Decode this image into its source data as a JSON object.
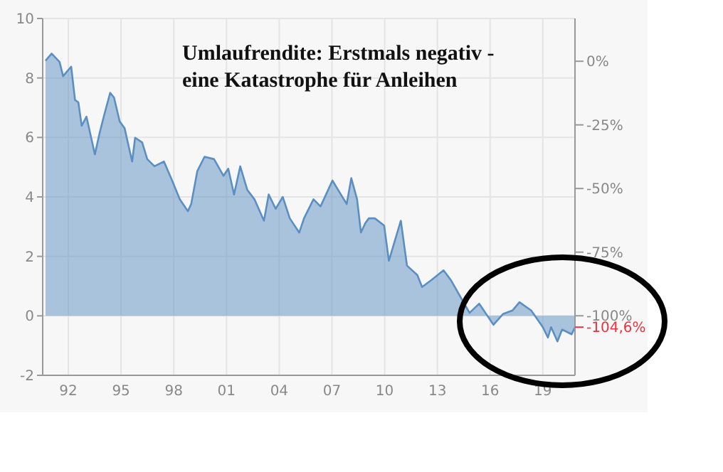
{
  "chart_data": {
    "type": "area",
    "title": "Umlaufrendite: Erstmals negativ -\neine Katastrophe für Anleihen",
    "x": [
      1990.7,
      1991.05,
      1991.5,
      1991.7,
      1992.16,
      1992.38,
      1992.57,
      1992.76,
      1993.03,
      1993.51,
      1993.78,
      1994.05,
      1994.38,
      1994.6,
      1994.92,
      1995.2,
      1995.63,
      1995.8,
      1996.2,
      1996.49,
      1996.9,
      1997.44,
      1997.85,
      1998.34,
      1998.8,
      1998.99,
      1999.34,
      1999.75,
      2000.29,
      2000.83,
      2001.1,
      2001.43,
      2001.78,
      2002.18,
      2002.59,
      2003.13,
      2003.4,
      2003.8,
      2004.2,
      2004.6,
      2005.14,
      2005.41,
      2005.95,
      2006.35,
      2007.03,
      2007.43,
      2007.84,
      2008.1,
      2008.43,
      2008.65,
      2008.9,
      2009.1,
      2009.44,
      2009.97,
      2010.24,
      2010.92,
      2011.27,
      2011.86,
      2012.13,
      2012.67,
      2013.35,
      2013.76,
      2014.83,
      2015.38,
      2016.19,
      2016.73,
      2017.27,
      2017.67,
      2018.34,
      2019.0,
      2019.29,
      2019.47,
      2019.83,
      2020.1,
      2020.64,
      2020.83
    ],
    "series": [
      {
        "color": "#5b8fc4",
        "values": [
          8.58,
          8.82,
          8.54,
          8.06,
          8.38,
          7.26,
          7.18,
          6.39,
          6.7,
          5.43,
          6.15,
          6.78,
          7.5,
          7.34,
          6.54,
          6.31,
          5.19,
          5.99,
          5.83,
          5.27,
          5.03,
          5.19,
          4.63,
          3.92,
          3.52,
          3.76,
          4.87,
          5.35,
          5.27,
          4.71,
          4.95,
          4.08,
          5.03,
          4.24,
          3.92,
          3.2,
          4.08,
          3.6,
          4.0,
          3.28,
          2.8,
          3.28,
          3.92,
          3.68,
          4.55,
          4.16,
          3.76,
          4.63,
          3.92,
          2.8,
          3.12,
          3.28,
          3.28,
          3.04,
          1.85,
          3.2,
          1.69,
          1.37,
          0.97,
          1.21,
          1.53,
          1.21,
          0.1,
          0.41,
          -0.3,
          0.06,
          0.18,
          0.46,
          0.18,
          -0.38,
          -0.73,
          -0.38,
          -0.86,
          -0.46,
          -0.62,
          -0.38
        ]
      }
    ],
    "xlim": [
      1990.54,
      2020.83
    ],
    "xticks": [
      {
        "value": 1992,
        "label": "92"
      },
      {
        "value": 1995,
        "label": "95"
      },
      {
        "value": 1998,
        "label": "98"
      },
      {
        "value": 2001,
        "label": "01"
      },
      {
        "value": 2004,
        "label": "04"
      },
      {
        "value": 2007,
        "label": "07"
      },
      {
        "value": 2010,
        "label": "10"
      },
      {
        "value": 2013,
        "label": "13"
      },
      {
        "value": 2016,
        "label": "16"
      },
      {
        "value": 2019,
        "label": "19"
      }
    ],
    "ylim": [
      -2,
      10
    ],
    "yticks": [
      -2,
      0,
      2,
      4,
      6,
      8,
      10
    ],
    "y2lim": [
      -123.4,
      16.8
    ],
    "y2ticks": [
      {
        "value": 0,
        "label": "0%"
      },
      {
        "value": -25,
        "label": "-25%"
      },
      {
        "value": -50,
        "label": "-50%"
      },
      {
        "value": -75,
        "label": "-75%"
      },
      {
        "value": -100,
        "label": "-100%"
      }
    ],
    "annotations": [
      {
        "text": "-104,6%",
        "x": 2020.83,
        "y": -0.38
      }
    ],
    "grid": true
  }
}
